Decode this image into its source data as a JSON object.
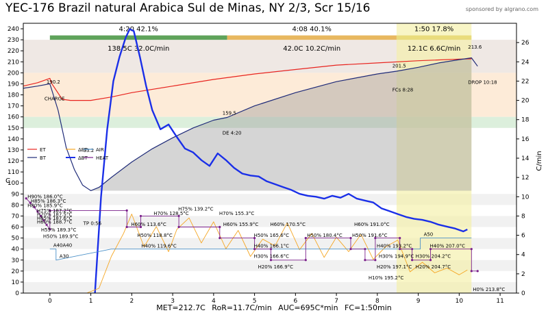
{
  "title": "YEC-176 Brazil natural Arabica Sul de Minas, NY 2/3, Scr 15/16",
  "sponsor": "sponsored by algrano.com",
  "footer": "MET=212.7C   RoR=11.7C/min   AUC=695C*min   FC=1:50min",
  "colors": {
    "et": "#e8231e",
    "bt": "#1e2a78",
    "delta_et": "#f5a623",
    "delta_bt": "#1a2fe8",
    "heat": "#7a1f8a",
    "air": "#4a90c8",
    "phase_dry": "#5fa35b",
    "phase_maillard": "#e8b860",
    "phase_dev": "#e9dc7c"
  },
  "chart_data": {
    "type": "line",
    "xlim": [
      -0.65,
      11.4
    ],
    "ylim": [
      0,
      245
    ],
    "ylim_right": [
      0,
      28
    ],
    "xticks": [
      "0",
      "1",
      "2",
      "3",
      "4",
      "5",
      "6",
      "7",
      "8",
      "9",
      "10",
      "11"
    ],
    "yticks": [
      "0",
      "10",
      "20",
      "30",
      "40",
      "50",
      "60",
      "70",
      "80",
      "90",
      "100",
      "110",
      "120",
      "130",
      "140",
      "150",
      "160",
      "170",
      "180",
      "190",
      "200",
      "210",
      "220",
      "230",
      "240"
    ],
    "yticks_right": [
      "0",
      "2",
      "4",
      "6",
      "8",
      "10",
      "12",
      "14",
      "16",
      "18",
      "20",
      "22",
      "24",
      "26"
    ],
    "ylabel": "C",
    "ylabel_right": "C/min",
    "grid": false,
    "legend_position": "left-middle",
    "legend": [
      "ET",
      "BT",
      "ΔET",
      "ΔBT",
      "AIR",
      "HEAT"
    ],
    "phases": [
      {
        "label": "4:20  42.1%",
        "detail": "138.5C  32.0C/min",
        "start": 0,
        "end": 4.33
      },
      {
        "label": "4:08  40.1%",
        "detail": "42.0C  10.2C/min",
        "start": 4.33,
        "end": 8.47
      },
      {
        "label": "1:50  17.8%",
        "detail": "12.1C  6.6C/min",
        "start": 8.47,
        "end": 10.3
      }
    ],
    "series": [
      {
        "name": "ET",
        "x": [
          -0.65,
          -0.3,
          0,
          0.05,
          0.3,
          0.5,
          1,
          1.5,
          2,
          3,
          4,
          5,
          6,
          7,
          8,
          9,
          10,
          10.3
        ],
        "y": [
          188,
          191,
          195,
          190,
          176,
          175,
          175,
          178,
          182,
          188,
          194,
          199,
          203,
          207,
          209,
          211,
          212.5,
          212.7
        ]
      },
      {
        "name": "BT",
        "x": [
          -0.65,
          -0.3,
          0,
          0.2,
          0.4,
          0.6,
          0.8,
          1,
          1.2,
          1.5,
          2,
          2.5,
          3,
          3.5,
          4,
          4.33,
          5,
          6,
          7,
          8,
          8.47,
          9,
          9.5,
          10,
          10.3,
          10.45
        ],
        "y": [
          186,
          188,
          190,
          166,
          132,
          112,
          98,
          93,
          96,
          105,
          119,
          131,
          141,
          150,
          157,
          159.5,
          170,
          182,
          192,
          199,
          201.5,
          205,
          209,
          212,
          213.6,
          206
        ]
      },
      {
        "name": "ΔBT",
        "x": [
          1.1,
          1.25,
          1.4,
          1.55,
          1.7,
          1.85,
          1.95,
          2.05,
          2.2,
          2.35,
          2.5,
          2.7,
          2.9,
          3.1,
          3.3,
          3.5,
          3.7,
          3.9,
          4.1,
          4.3,
          4.5,
          4.7,
          4.9,
          5.1,
          5.3,
          5.5,
          5.7,
          5.9,
          6.1,
          6.3,
          6.5,
          6.7,
          6.9,
          7.1,
          7.3,
          7.5,
          7.7,
          7.9,
          8.1,
          8.3,
          8.5,
          8.7,
          8.9,
          9.1,
          9.3,
          9.5,
          9.7,
          9.9,
          10.1,
          10.2
        ],
        "y": [
          0,
          10,
          17,
          22,
          24.5,
          26.5,
          27.4,
          27.2,
          24.5,
          21.5,
          19,
          17,
          17.5,
          16.2,
          15,
          14.6,
          13.8,
          13.2,
          14.5,
          13.8,
          13,
          12.4,
          12.2,
          12.1,
          11.6,
          11.3,
          11,
          10.7,
          10.3,
          10.1,
          10,
          9.8,
          10.1,
          9.9,
          10.3,
          9.8,
          9.6,
          9.4,
          8.8,
          8.5,
          8.2,
          7.9,
          7.7,
          7.6,
          7.4,
          7.1,
          6.9,
          6.7,
          6.4,
          6.6
        ]
      },
      {
        "name": "ΔET",
        "x": [
          0.9,
          1.2,
          1.5,
          1.8,
          2.0,
          2.3,
          2.6,
          2.9,
          3.1,
          3.4,
          3.7,
          4.0,
          4.3,
          4.6,
          4.9,
          5.2,
          5.5,
          5.8,
          6.1,
          6.4,
          6.7,
          7.0,
          7.3,
          7.6,
          7.9,
          8.2,
          8.5,
          8.8,
          9.1,
          9.4,
          9.7,
          10.0,
          10.2
        ],
        "y": [
          0,
          0.5,
          3.8,
          6.2,
          8.2,
          4.8,
          6.9,
          4.3,
          6.6,
          7.8,
          5.2,
          7.4,
          4.6,
          6.5,
          3.8,
          5.6,
          4.9,
          7.3,
          4.5,
          6.2,
          3.7,
          5.8,
          4.3,
          6.1,
          3.5,
          4.8,
          5.5,
          2.2,
          3.2,
          2.1,
          2.6,
          1.9,
          2.4
        ]
      },
      {
        "name": "AIR",
        "x": [
          0,
          0.15,
          0.15,
          1.5,
          2.1,
          3,
          4,
          4.8,
          5.5,
          6.5,
          7.5,
          8,
          8.8,
          8.8,
          9.05,
          9.05,
          10.3
        ],
        "y": [
          40,
          40,
          30,
          40,
          40,
          40,
          40,
          40,
          40,
          40,
          40,
          40,
          40,
          40,
          40,
          50,
          50
        ]
      },
      {
        "name": "HEAT",
        "x": [
          -0.58,
          -0.48,
          -0.38,
          -0.3,
          -0.22,
          -0.15,
          -0.08,
          0,
          0,
          1.88,
          1.88,
          2.22,
          2.22,
          3.15,
          3.15,
          4.15,
          4.15,
          5.0,
          5.0,
          5.4,
          5.4,
          6.25,
          6.25,
          7.35,
          7.35,
          7.7,
          7.7,
          7.95,
          7.95,
          8.55,
          8.55,
          8.85,
          8.85,
          9.3,
          9.3,
          10.3,
          10.3,
          10.45
        ],
        "y": [
          86,
          82,
          78,
          74,
          70,
          66,
          62,
          58,
          75,
          75,
          60,
          60,
          70,
          70,
          60,
          60,
          50,
          50,
          40,
          40,
          30,
          30,
          50,
          50,
          40,
          40,
          30,
          30,
          50,
          50,
          40,
          40,
          30,
          30,
          40,
          40,
          20,
          20
        ]
      }
    ],
    "markers": [
      {
        "label": "190.2",
        "x": 0.05,
        "y": 190.2
      },
      {
        "label": "CHARGE",
        "x": 0,
        "y": 175
      },
      {
        "label": "TP 0:56",
        "x": 0.95,
        "y": 62
      },
      {
        "label": "93.2",
        "x": 0.95,
        "y": 128
      },
      {
        "label": "159.5",
        "x": 4.35,
        "y": 162
      },
      {
        "label": "DE 4:20",
        "x": 4.35,
        "y": 144
      },
      {
        "label": "201.5",
        "x": 8.5,
        "y": 205
      },
      {
        "label": "FCs 8:28",
        "x": 8.5,
        "y": 183
      },
      {
        "label": "213.6",
        "x": 10.35,
        "y": 222
      },
      {
        "label": "DROP 10:18",
        "x": 10.35,
        "y": 190
      }
    ],
    "heat_labels": [
      {
        "label": "H90% 186.0°C",
        "x": -0.58,
        "y": 86
      },
      {
        "label": "H85% 186.3°C",
        "x": -0.5,
        "y": 82
      },
      {
        "label": "H80% 185.9°C",
        "x": -0.58,
        "y": 78
      },
      {
        "label": "H75% 187.2°C",
        "x": -0.35,
        "y": 73.5
      },
      {
        "label": "H70% 187.5°C",
        "x": -0.35,
        "y": 70
      },
      {
        "label": "H65% 187.6°C",
        "x": -0.35,
        "y": 66.5
      },
      {
        "label": "H60% 188.7°C",
        "x": -0.35,
        "y": 63
      },
      {
        "label": "H55% 189.3°C",
        "x": -0.25,
        "y": 56
      },
      {
        "label": "H50% 189.9°C",
        "x": -0.2,
        "y": 50
      },
      {
        "label": "A40A40",
        "x": 0.05,
        "y": 42
      },
      {
        "label": "A30",
        "x": 0.2,
        "y": 32
      },
      {
        "label": "H70% 128.5°C",
        "x": 2.5,
        "y": 71
      },
      {
        "label": "H75% 139.2°C",
        "x": 3.1,
        "y": 75
      },
      {
        "label": "H70% 155.3°C",
        "x": 4.1,
        "y": 71
      },
      {
        "label": "H60% 113.6°C",
        "x": 1.95,
        "y": 61
      },
      {
        "label": "H60% 155.9°C",
        "x": 4.2,
        "y": 61
      },
      {
        "label": "H60% 170.5°C",
        "x": 5.35,
        "y": 61
      },
      {
        "label": "H60% 191.0°C",
        "x": 7.4,
        "y": 61
      },
      {
        "label": "H50% 118.8°C",
        "x": 2.1,
        "y": 51
      },
      {
        "label": "H50% 165.6°C",
        "x": 4.95,
        "y": 51
      },
      {
        "label": "H50% 180.4°C",
        "x": 6.25,
        "y": 51
      },
      {
        "label": "H50% 191.6°C",
        "x": 7.35,
        "y": 51
      },
      {
        "label": "H40% 119.6°C",
        "x": 2.2,
        "y": 41.5
      },
      {
        "label": "H40% 166.1°C",
        "x": 4.95,
        "y": 41.5
      },
      {
        "label": "H40% 193.2°C",
        "x": 7.95,
        "y": 41.5
      },
      {
        "label": "H40% 207.0°C",
        "x": 9.25,
        "y": 41.5
      },
      {
        "label": "H30% 166.6°C",
        "x": 4.95,
        "y": 32
      },
      {
        "label": "H30% 194.9°C",
        "x": 8.0,
        "y": 32
      },
      {
        "label": "H30% 204.2°C",
        "x": 8.9,
        "y": 32
      },
      {
        "label": "H20% 166.9°C",
        "x": 5.05,
        "y": 22.5
      },
      {
        "label": "H20% 197.1°C",
        "x": 7.95,
        "y": 22.5
      },
      {
        "label": "H20% 204.7°C",
        "x": 8.9,
        "y": 22.5
      },
      {
        "label": "H10% 195.2°C",
        "x": 7.75,
        "y": 12.5
      },
      {
        "label": "H0% 213.8°C",
        "x": 10.3,
        "y": 2
      },
      {
        "label": "A50",
        "x": 9.1,
        "y": 52
      }
    ]
  }
}
